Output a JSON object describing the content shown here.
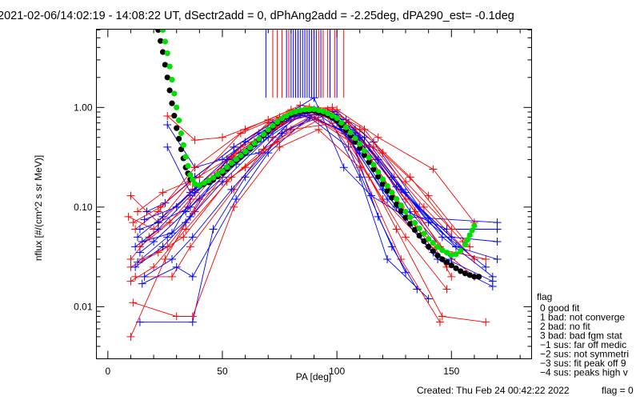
{
  "chart_data": {
    "type": "line",
    "title": "2021-02-06/14:02:19 - 14:08:22 UT, dSectr2add = 0, dPhAng2add = -2.25deg, dPA290_est=  -0.1deg",
    "xlabel": "PA [deg]",
    "ylabel": "nflux [#/(cm^2 s sr MeV)]",
    "xlim": [
      -5,
      185
    ],
    "ylim": [
      0.003,
      6.1
    ],
    "yscale": "log",
    "xticks": [
      {
        "v": 0,
        "label": "0"
      },
      {
        "v": 50,
        "label": "50"
      },
      {
        "v": 100,
        "label": "100"
      },
      {
        "v": 150,
        "label": "150"
      }
    ],
    "yticks": [
      {
        "v": 1,
        "label": "1.00"
      },
      {
        "v": 0.1,
        "label": "0.10"
      },
      {
        "v": 0.01,
        "label": "0.01"
      }
    ],
    "colors": {
      "red": "#ff0000",
      "blue": "#0000ff",
      "fit": "#00e000",
      "fit2": "#000000"
    },
    "offscale_lines": {
      "top_value": 1.25,
      "red": [
        72,
        74,
        76,
        79,
        82,
        86,
        89,
        92,
        94,
        96,
        99,
        103
      ],
      "blue": [
        69,
        78,
        80,
        81,
        82,
        83,
        84,
        85,
        86,
        87,
        88,
        89,
        90,
        91,
        93,
        97,
        100
      ]
    },
    "series": [
      {
        "name": "fit-green",
        "color": "#00e000",
        "points": [
          [
            24,
            6
          ],
          [
            26,
            3.5
          ],
          [
            28,
            1.9
          ],
          [
            30,
            1.0
          ],
          [
            32,
            0.55
          ],
          [
            34,
            0.32
          ],
          [
            36,
            0.21
          ],
          [
            38,
            0.17
          ],
          [
            40,
            0.165
          ],
          [
            45,
            0.19
          ],
          [
            50,
            0.23
          ],
          [
            55,
            0.29
          ],
          [
            60,
            0.36
          ],
          [
            65,
            0.46
          ],
          [
            70,
            0.6
          ],
          [
            75,
            0.75
          ],
          [
            80,
            0.88
          ],
          [
            85,
            0.95
          ],
          [
            90,
            0.96
          ],
          [
            95,
            0.9
          ],
          [
            100,
            0.78
          ],
          [
            105,
            0.6
          ],
          [
            110,
            0.43
          ],
          [
            115,
            0.29
          ],
          [
            120,
            0.19
          ],
          [
            125,
            0.13
          ],
          [
            130,
            0.09
          ],
          [
            135,
            0.065
          ],
          [
            140,
            0.048
          ],
          [
            145,
            0.038
          ],
          [
            150,
            0.033
          ],
          [
            153,
            0.034
          ],
          [
            156,
            0.042
          ],
          [
            160,
            0.065
          ]
        ]
      },
      {
        "name": "fit-black",
        "color": "#000000",
        "points": [
          [
            22,
            6
          ],
          [
            24,
            3.6
          ],
          [
            26,
            2.0
          ],
          [
            28,
            1.1
          ],
          [
            30,
            0.62
          ],
          [
            32,
            0.38
          ],
          [
            34,
            0.25
          ],
          [
            36,
            0.19
          ],
          [
            38,
            0.17
          ],
          [
            40,
            0.165
          ],
          [
            45,
            0.18
          ],
          [
            50,
            0.22
          ],
          [
            55,
            0.28
          ],
          [
            60,
            0.35
          ],
          [
            65,
            0.45
          ],
          [
            70,
            0.58
          ],
          [
            75,
            0.73
          ],
          [
            80,
            0.86
          ],
          [
            85,
            0.93
          ],
          [
            90,
            0.93
          ],
          [
            95,
            0.87
          ],
          [
            100,
            0.74
          ],
          [
            105,
            0.56
          ],
          [
            110,
            0.39
          ],
          [
            115,
            0.26
          ],
          [
            120,
            0.17
          ],
          [
            125,
            0.115
          ],
          [
            130,
            0.078
          ],
          [
            135,
            0.055
          ],
          [
            140,
            0.04
          ],
          [
            145,
            0.031
          ],
          [
            150,
            0.026
          ],
          [
            155,
            0.022
          ],
          [
            160,
            0.02
          ],
          [
            163,
            0.02
          ]
        ]
      }
    ],
    "traces_red": [
      [
        [
          10,
          0.13
        ],
        [
          22,
          0.07
        ],
        [
          38,
          0.2
        ],
        [
          55,
          0.4
        ],
        [
          75,
          0.8
        ],
        [
          92,
          0.95
        ],
        [
          110,
          0.5
        ],
        [
          130,
          0.12
        ],
        [
          150,
          0.03
        ]
      ],
      [
        [
          10,
          0.03
        ],
        [
          18,
          0.05
        ],
        [
          35,
          0.1
        ],
        [
          52,
          0.3
        ],
        [
          70,
          0.7
        ],
        [
          88,
          1.0
        ],
        [
          108,
          0.55
        ],
        [
          128,
          0.1
        ],
        [
          148,
          0.025
        ]
      ],
      [
        [
          9,
          0.08
        ],
        [
          20,
          0.06
        ],
        [
          37,
          0.15
        ],
        [
          57,
          0.35
        ],
        [
          78,
          0.85
        ],
        [
          95,
          0.9
        ],
        [
          115,
          0.3
        ],
        [
          135,
          0.06
        ],
        [
          160,
          0.02
        ]
      ],
      [
        [
          10,
          0.005
        ],
        [
          25,
          0.03
        ],
        [
          40,
          0.12
        ],
        [
          60,
          0.25
        ],
        [
          80,
          0.6
        ],
        [
          100,
          0.7
        ],
        [
          120,
          0.12
        ],
        [
          140,
          0.04
        ],
        [
          165,
          0.03
        ]
      ],
      [
        [
          12,
          0.02
        ],
        [
          28,
          0.02
        ],
        [
          36,
          0.04
        ],
        [
          55,
          0.15
        ],
        [
          72,
          0.5
        ],
        [
          90,
          0.85
        ],
        [
          105,
          0.7
        ],
        [
          125,
          0.2
        ],
        [
          145,
          0.04
        ]
      ],
      [
        [
          26,
          0.82
        ],
        [
          38,
          0.47
        ],
        [
          50,
          0.5
        ],
        [
          70,
          0.75
        ],
        [
          84,
          1.05
        ],
        [
          100,
          0.95
        ],
        [
          118,
          0.5
        ],
        [
          142,
          0.24
        ],
        [
          160,
          0.07
        ]
      ],
      [
        [
          13,
          0.09
        ],
        [
          24,
          0.14
        ],
        [
          40,
          0.2
        ],
        [
          58,
          0.55
        ],
        [
          80,
          0.9
        ],
        [
          96,
          0.95
        ],
        [
          112,
          0.6
        ],
        [
          130,
          0.18
        ],
        [
          155,
          0.045
        ]
      ],
      [
        [
          11,
          0.011
        ],
        [
          30,
          0.008
        ],
        [
          37,
          0.008
        ],
        [
          55,
          0.1
        ],
        [
          75,
          0.4
        ],
        [
          92,
          0.6
        ],
        [
          110,
          0.25
        ],
        [
          128,
          0.03
        ],
        [
          145,
          0.007
        ]
      ],
      [
        [
          14,
          0.04
        ],
        [
          27,
          0.07
        ],
        [
          36,
          0.12
        ],
        [
          58,
          0.4
        ],
        [
          70,
          0.55
        ],
        [
          86,
          0.9
        ],
        [
          106,
          0.45
        ],
        [
          126,
          0.06
        ],
        [
          146,
          0.008
        ],
        [
          165,
          0.007
        ]
      ],
      [
        [
          10,
          0.018
        ],
        [
          20,
          0.025
        ],
        [
          34,
          0.06
        ],
        [
          54,
          0.2
        ],
        [
          74,
          0.45
        ],
        [
          92,
          0.75
        ],
        [
          112,
          0.4
        ],
        [
          134,
          0.09
        ],
        [
          150,
          0.02
        ]
      ],
      [
        [
          12,
          0.06
        ],
        [
          22,
          0.09
        ],
        [
          38,
          0.25
        ],
        [
          60,
          0.6
        ],
        [
          80,
          0.95
        ],
        [
          98,
          1.0
        ],
        [
          116,
          0.4
        ],
        [
          138,
          0.1
        ],
        [
          160,
          0.03
        ]
      ],
      [
        [
          15,
          0.03
        ],
        [
          26,
          0.04
        ],
        [
          38,
          0.09
        ],
        [
          56,
          0.3
        ],
        [
          76,
          0.7
        ],
        [
          94,
          0.9
        ],
        [
          114,
          0.2
        ],
        [
          130,
          0.05
        ],
        [
          148,
          0.015
        ]
      ],
      [
        [
          10,
          0.025
        ],
        [
          22,
          0.035
        ],
        [
          33,
          0.05
        ],
        [
          52,
          0.18
        ],
        [
          68,
          0.38
        ],
        [
          90,
          0.8
        ],
        [
          120,
          0.35
        ],
        [
          140,
          0.13
        ],
        [
          158,
          0.04
        ]
      ],
      [
        [
          11,
          0.07
        ],
        [
          23,
          0.1
        ],
        [
          36,
          0.18
        ],
        [
          54,
          0.32
        ],
        [
          74,
          0.65
        ],
        [
          88,
          0.92
        ],
        [
          110,
          0.6
        ],
        [
          132,
          0.2
        ],
        [
          150,
          0.06
        ]
      ]
    ],
    "traces_blue": [
      [
        [
          26,
          0.67
        ],
        [
          38,
          0.25
        ],
        [
          50,
          0.3
        ],
        [
          66,
          0.55
        ],
        [
          84,
          0.95
        ],
        [
          100,
          0.9
        ],
        [
          116,
          0.45
        ],
        [
          136,
          0.1
        ],
        [
          160,
          0.03
        ]
      ],
      [
        [
          26,
          0.4
        ],
        [
          36,
          0.14
        ],
        [
          48,
          0.22
        ],
        [
          64,
          0.45
        ],
        [
          82,
          0.9
        ],
        [
          98,
          0.92
        ],
        [
          114,
          0.4
        ],
        [
          132,
          0.09
        ],
        [
          150,
          0.03
        ]
      ],
      [
        [
          14,
          0.007
        ],
        [
          37,
          0.007
        ],
        [
          46,
          0.06
        ],
        [
          60,
          0.2
        ],
        [
          78,
          0.6
        ],
        [
          96,
          0.85
        ],
        [
          110,
          0.2
        ],
        [
          122,
          0.03
        ],
        [
          140,
          0.012
        ]
      ],
      [
        [
          12,
          0.04
        ],
        [
          22,
          0.06
        ],
        [
          36,
          0.13
        ],
        [
          55,
          0.3
        ],
        [
          75,
          0.75
        ],
        [
          90,
          0.95
        ],
        [
          108,
          0.6
        ],
        [
          128,
          0.15
        ],
        [
          152,
          0.04
        ]
      ],
      [
        [
          13,
          0.05
        ],
        [
          24,
          0.08
        ],
        [
          38,
          0.15
        ],
        [
          52,
          0.26
        ],
        [
          72,
          0.6
        ],
        [
          86,
          0.95
        ],
        [
          104,
          0.75
        ],
        [
          124,
          0.2
        ],
        [
          146,
          0.05
        ],
        [
          168,
          0.02
        ]
      ],
      [
        [
          15,
          0.017
        ],
        [
          30,
          0.025
        ],
        [
          37,
          0.02
        ],
        [
          56,
          0.12
        ],
        [
          70,
          0.35
        ],
        [
          88,
          0.8
        ],
        [
          105,
          0.4
        ],
        [
          124,
          0.04
        ],
        [
          135,
          0.015
        ]
      ],
      [
        [
          14,
          0.035
        ],
        [
          20,
          0.045
        ],
        [
          34,
          0.09
        ],
        [
          50,
          0.2
        ],
        [
          68,
          0.5
        ],
        [
          84,
          0.85
        ],
        [
          102,
          0.6
        ],
        [
          120,
          0.15
        ],
        [
          142,
          0.035
        ],
        [
          168,
          0.018
        ]
      ],
      [
        [
          16,
          0.02
        ],
        [
          28,
          0.03
        ],
        [
          37,
          0.05
        ],
        [
          54,
          0.15
        ],
        [
          76,
          0.55
        ],
        [
          92,
          0.85
        ],
        [
          106,
          0.5
        ],
        [
          118,
          0.08
        ],
        [
          130,
          0.022
        ]
      ],
      [
        [
          17,
          0.09
        ],
        [
          25,
          0.11
        ],
        [
          38,
          0.2
        ],
        [
          55,
          0.4
        ],
        [
          72,
          0.7
        ],
        [
          90,
          1.25
        ],
        [
          103,
          0.25
        ],
        [
          115,
          0.13
        ],
        [
          130,
          0.08
        ],
        [
          170,
          0.07
        ]
      ],
      [
        [
          13,
          0.028
        ],
        [
          26,
          0.05
        ],
        [
          36,
          0.08
        ],
        [
          52,
          0.3
        ],
        [
          66,
          0.35
        ],
        [
          84,
          0.9
        ],
        [
          100,
          0.85
        ],
        [
          118,
          0.3
        ],
        [
          140,
          0.07
        ],
        [
          165,
          0.025
        ]
      ],
      [
        [
          14,
          0.06
        ],
        [
          22,
          0.07
        ],
        [
          36,
          0.1
        ],
        [
          58,
          0.35
        ],
        [
          74,
          0.7
        ],
        [
          94,
          0.9
        ],
        [
          112,
          0.5
        ],
        [
          130,
          0.14
        ],
        [
          152,
          0.04
        ],
        [
          170,
          0.03
        ]
      ],
      [
        [
          15,
          0.045
        ],
        [
          28,
          0.055
        ],
        [
          38,
          0.14
        ],
        [
          56,
          0.27
        ],
        [
          80,
          0.8
        ],
        [
          96,
          0.88
        ],
        [
          110,
          0.35
        ],
        [
          126,
          0.1
        ],
        [
          148,
          0.06
        ],
        [
          170,
          0.06
        ]
      ],
      [
        [
          12,
          0.025
        ],
        [
          24,
          0.04
        ],
        [
          34,
          0.07
        ],
        [
          50,
          0.18
        ],
        [
          70,
          0.5
        ],
        [
          86,
          0.88
        ],
        [
          104,
          0.55
        ],
        [
          122,
          0.12
        ],
        [
          144,
          0.03
        ],
        [
          168,
          0.016
        ]
      ],
      [
        [
          16,
          0.075
        ],
        [
          30,
          0.1
        ],
        [
          40,
          0.17
        ],
        [
          60,
          0.45
        ],
        [
          78,
          0.78
        ],
        [
          92,
          0.92
        ],
        [
          108,
          0.52
        ],
        [
          126,
          0.16
        ],
        [
          150,
          0.05
        ],
        [
          170,
          0.045
        ]
      ]
    ],
    "legend": {
      "title": "flag",
      "entries": [
        "0 good fit",
        "1 bad: not converge",
        "2 bad: no fit",
        "3 bad: bad fgm stat",
        "−1 sus: far off medic",
        "−2 sus: not symmetri",
        "−3 sus: fit peak off 9",
        "−4 sus: peaks high v"
      ]
    },
    "footer": {
      "created": "Created: Thu Feb 24 00:42:22 2022",
      "flag": "flag = 0"
    }
  }
}
